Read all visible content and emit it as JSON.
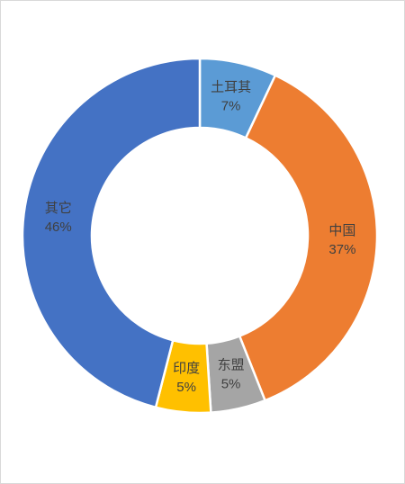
{
  "chart_data": {
    "type": "donut",
    "categories": [
      "土耳其",
      "中国",
      "东盟",
      "印度",
      "其它"
    ],
    "values": [
      7,
      37,
      5,
      5,
      46
    ],
    "value_labels": [
      "7%",
      "37%",
      "5%",
      "5%",
      "46%"
    ],
    "colors": [
      "#5b9bd5",
      "#ed7d31",
      "#a5a5a5",
      "#ffc000",
      "#4472c4"
    ]
  }
}
